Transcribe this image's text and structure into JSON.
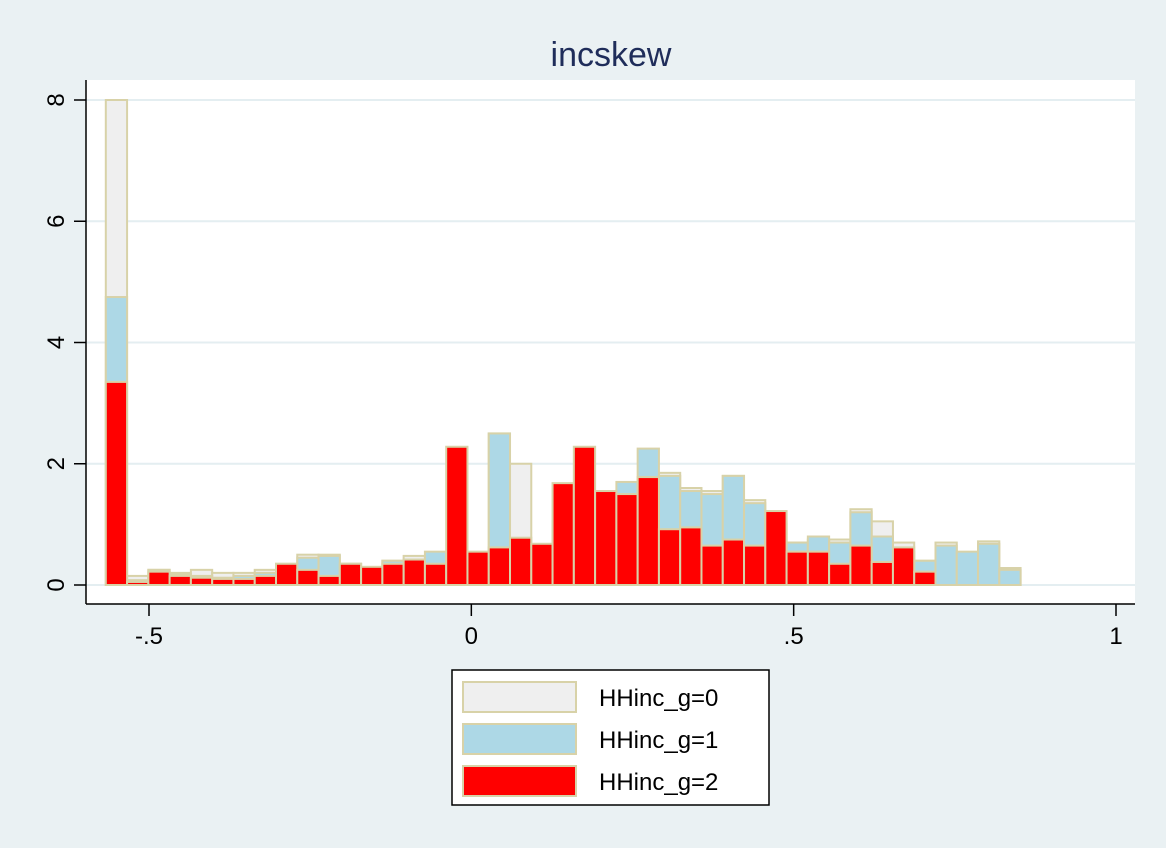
{
  "chart_data": {
    "type": "bar",
    "title": "incskew",
    "xlabel": "",
    "ylabel": "",
    "xlim": [
      -0.6,
      1.03
    ],
    "ylim": [
      0,
      8.25
    ],
    "x_ticks": [
      {
        "value": -0.5,
        "label": "-.5"
      },
      {
        "value": 0,
        "label": "0"
      },
      {
        "value": 0.5,
        "label": ".5"
      },
      {
        "value": 1,
        "label": "1"
      }
    ],
    "y_ticks": [
      {
        "value": 0,
        "label": "0"
      },
      {
        "value": 2,
        "label": "2"
      },
      {
        "value": 4,
        "label": "4"
      },
      {
        "value": 6,
        "label": "6"
      },
      {
        "value": 8,
        "label": "8"
      }
    ],
    "grid": true,
    "legend_position": "bottom-center",
    "bin_width": 0.033,
    "series": [
      {
        "name": "HHinc_g=0",
        "color": "#efefef",
        "edge": "#d8d2a8",
        "bins": [
          [
            -0.567,
            8.0
          ],
          [
            -0.534,
            0.15
          ],
          [
            -0.501,
            0.25
          ],
          [
            -0.468,
            0.2
          ],
          [
            -0.435,
            0.25
          ],
          [
            -0.402,
            0.2
          ],
          [
            -0.369,
            0.2
          ],
          [
            -0.336,
            0.25
          ],
          [
            -0.303,
            0.3
          ],
          [
            -0.27,
            0.5
          ],
          [
            -0.237,
            0.5
          ],
          [
            -0.204,
            0.35
          ],
          [
            -0.171,
            0.25
          ],
          [
            -0.138,
            0.4
          ],
          [
            -0.105,
            0.48
          ],
          [
            -0.072,
            0.4
          ],
          [
            -0.039,
            0.5
          ],
          [
            -0.006,
            0.45
          ],
          [
            0.027,
            2.5
          ],
          [
            0.06,
            2.0
          ],
          [
            0.093,
            0.6
          ],
          [
            0.126,
            0.7
          ],
          [
            0.159,
            0.85
          ],
          [
            0.192,
            0.8
          ],
          [
            0.225,
            1.05
          ],
          [
            0.258,
            1.7
          ],
          [
            0.291,
            1.85
          ],
          [
            0.324,
            1.6
          ],
          [
            0.357,
            1.55
          ],
          [
            0.39,
            1.8
          ],
          [
            0.423,
            1.4
          ],
          [
            0.456,
            1.05
          ],
          [
            0.489,
            0.7
          ],
          [
            0.522,
            0.75
          ],
          [
            0.555,
            0.75
          ],
          [
            0.588,
            1.25
          ],
          [
            0.621,
            1.05
          ],
          [
            0.654,
            0.7
          ],
          [
            0.687,
            0.4
          ],
          [
            0.72,
            0.7
          ],
          [
            0.753,
            0.45
          ],
          [
            0.786,
            0.72
          ],
          [
            0.819,
            0.28
          ]
        ]
      },
      {
        "name": "HHinc_g=1",
        "color": "#add8e6",
        "edge": "#d8d2a8",
        "bins": [
          [
            -0.567,
            4.75
          ],
          [
            -0.534,
            0.08
          ],
          [
            -0.501,
            0.25
          ],
          [
            -0.468,
            0.18
          ],
          [
            -0.435,
            0.15
          ],
          [
            -0.402,
            0.12
          ],
          [
            -0.369,
            0.15
          ],
          [
            -0.336,
            0.2
          ],
          [
            -0.303,
            0.35
          ],
          [
            -0.27,
            0.45
          ],
          [
            -0.237,
            0.48
          ],
          [
            -0.204,
            0.35
          ],
          [
            -0.171,
            0.2
          ],
          [
            -0.138,
            0.4
          ],
          [
            -0.105,
            0.35
          ],
          [
            -0.072,
            0.55
          ],
          [
            -0.039,
            0.5
          ],
          [
            -0.006,
            0.4
          ],
          [
            0.027,
            2.5
          ],
          [
            0.06,
            0.55
          ],
          [
            0.093,
            0.65
          ],
          [
            0.126,
            1.05
          ],
          [
            0.159,
            0.75
          ],
          [
            0.192,
            0.75
          ],
          [
            0.225,
            1.7
          ],
          [
            0.258,
            2.25
          ],
          [
            0.291,
            1.8
          ],
          [
            0.324,
            1.55
          ],
          [
            0.357,
            1.5
          ],
          [
            0.39,
            1.8
          ],
          [
            0.423,
            1.35
          ],
          [
            0.456,
            1.0
          ],
          [
            0.489,
            0.7
          ],
          [
            0.522,
            0.8
          ],
          [
            0.555,
            0.7
          ],
          [
            0.588,
            1.2
          ],
          [
            0.621,
            0.8
          ],
          [
            0.654,
            0.55
          ],
          [
            0.687,
            0.4
          ],
          [
            0.72,
            0.65
          ],
          [
            0.753,
            0.55
          ],
          [
            0.786,
            0.68
          ],
          [
            0.819,
            0.25
          ]
        ]
      },
      {
        "name": "HHinc_g=2",
        "color": "#ff0000",
        "edge": "#d8d2a8",
        "bins": [
          [
            -0.567,
            3.35
          ],
          [
            -0.534,
            0.05
          ],
          [
            -0.501,
            0.22
          ],
          [
            -0.468,
            0.15
          ],
          [
            -0.435,
            0.12
          ],
          [
            -0.402,
            0.1
          ],
          [
            -0.369,
            0.1
          ],
          [
            -0.336,
            0.15
          ],
          [
            -0.303,
            0.35
          ],
          [
            -0.27,
            0.25
          ],
          [
            -0.237,
            0.15
          ],
          [
            -0.204,
            0.35
          ],
          [
            -0.171,
            0.3
          ],
          [
            -0.138,
            0.35
          ],
          [
            -0.105,
            0.42
          ],
          [
            -0.072,
            0.35
          ],
          [
            -0.039,
            2.28
          ],
          [
            -0.006,
            0.55
          ],
          [
            0.027,
            0.62
          ],
          [
            0.06,
            0.78
          ],
          [
            0.093,
            0.68
          ],
          [
            0.126,
            1.68
          ],
          [
            0.159,
            2.28
          ],
          [
            0.192,
            1.55
          ],
          [
            0.225,
            1.5
          ],
          [
            0.258,
            1.78
          ],
          [
            0.291,
            0.92
          ],
          [
            0.324,
            0.95
          ],
          [
            0.357,
            0.65
          ],
          [
            0.39,
            0.75
          ],
          [
            0.423,
            0.65
          ],
          [
            0.456,
            1.22
          ],
          [
            0.489,
            0.55
          ],
          [
            0.522,
            0.55
          ],
          [
            0.555,
            0.35
          ],
          [
            0.588,
            0.65
          ],
          [
            0.621,
            0.38
          ],
          [
            0.654,
            0.62
          ],
          [
            0.687,
            0.22
          ]
        ]
      }
    ]
  }
}
